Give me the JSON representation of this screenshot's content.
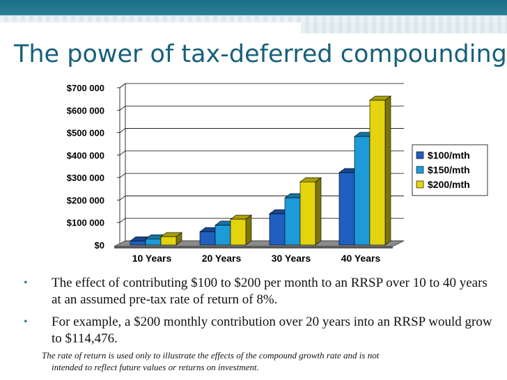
{
  "slide": {
    "title": "The power of tax-deferred compounding"
  },
  "chart_data": {
    "type": "bar",
    "categories": [
      "10 Years",
      "20 Years",
      "30 Years",
      "40 Years"
    ],
    "series": [
      {
        "name": "$100/mth",
        "color": "#1f5fbf",
        "values": [
          18000,
          59000,
          139000,
          322000
        ]
      },
      {
        "name": "$150/mth",
        "color": "#1d9ad8",
        "values": [
          27000,
          88000,
          210000,
          483000
        ]
      },
      {
        "name": "$200/mth",
        "color": "#e3d40e",
        "values": [
          37000,
          114476,
          281000,
          644000
        ]
      }
    ],
    "yticks": [
      "$0",
      "$100 000",
      "$200 000",
      "$300 000",
      "$400 000",
      "$500 000",
      "$600 000",
      "$700 000"
    ],
    "ylim": [
      0,
      700000
    ],
    "grid": true,
    "legend_position": "right",
    "bar_style": "3d"
  },
  "bullets": [
    "The effect of contributing $100 to $200 per month to an RRSP over 10 to 40 years at an assumed pre-tax rate of return of 8%.",
    "For example, a $200 monthly contribution over 20 years into an RRSP would grow to $114,476."
  ],
  "note": {
    "line1": "The rate of return is used only to illustrate the effects of the compound growth rate and is not",
    "line2": "intended to reflect future values or returns on investment."
  },
  "colors": {
    "accent": "#16607a",
    "band": "#1a6f86"
  }
}
